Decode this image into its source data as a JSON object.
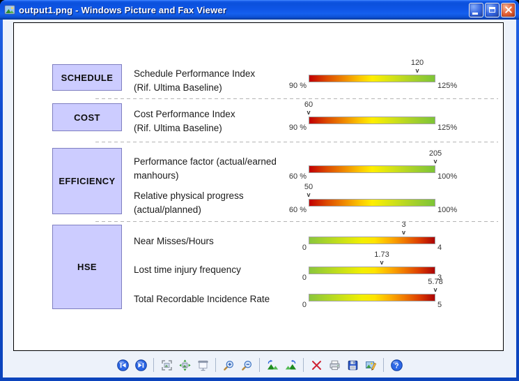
{
  "window": {
    "title": "output1.png - Windows Picture and Fax Viewer",
    "controls": {
      "minimize": "minimize",
      "maximize": "maximize",
      "close": "close"
    }
  },
  "kpi": {
    "marker_glyph": "v",
    "sections": [
      {
        "category": "SCHEDULE",
        "rows": [
          {
            "label_lines": [
              "Schedule Performance Index",
              "(Rif. Ultima Baseline)"
            ],
            "value_label": "120",
            "value": 120,
            "min": 90,
            "max": 125,
            "min_label": "90 %",
            "max_label": "125%",
            "gradient": "red-to-green"
          }
        ]
      },
      {
        "category": "COST",
        "rows": [
          {
            "label_lines": [
              "Cost Performance Index",
              "(Rif. Ultima Baseline)"
            ],
            "value_label": "60",
            "value": 60,
            "min": 90,
            "max": 125,
            "min_label": "90 %",
            "max_label": "125%",
            "gradient": "red-to-green"
          }
        ]
      },
      {
        "category": "EFFICIENCY",
        "rows": [
          {
            "label_lines": [
              "Performance factor (actual/earned",
              "manhours)"
            ],
            "value_label": "205",
            "value": 205,
            "min": 60,
            "max": 100,
            "min_label": "60 %",
            "max_label": "100%",
            "gradient": "red-to-green"
          },
          {
            "label_lines": [
              "Relative physical progress",
              "(actual/planned)"
            ],
            "value_label": "50",
            "value": 50,
            "min": 60,
            "max": 100,
            "min_label": "60 %",
            "max_label": "100%",
            "gradient": "red-to-green"
          }
        ]
      },
      {
        "category": "HSE",
        "rows": [
          {
            "label_lines": [
              "Near Misses/Hours"
            ],
            "value_label": "3",
            "value": 3,
            "min": 0,
            "max": 4,
            "min_label": "0",
            "max_label": "4",
            "gradient": "green-to-red"
          },
          {
            "label_lines": [
              "Lost time injury frequency"
            ],
            "value_label": "1.73",
            "value": 1.73,
            "min": 0,
            "max": 3,
            "min_label": "0",
            "max_label": "3",
            "gradient": "green-to-red"
          },
          {
            "label_lines": [
              "Total Recordable Incidence Rate"
            ],
            "value_label": "5.78",
            "value": 5.78,
            "min": 0,
            "max": 5,
            "min_label": "0",
            "max_label": "5",
            "gradient": "green-to-red"
          }
        ]
      }
    ]
  },
  "chart_data": {
    "type": "bar",
    "subtype": "kpi-gauge-bars",
    "gauges": [
      {
        "category": "SCHEDULE",
        "label": "Schedule Performance Index (Rif. Ultima Baseline)",
        "value": 120,
        "scale": [
          90,
          125
        ],
        "scale_labels": [
          "90 %",
          "125%"
        ],
        "gradient": "red-to-green"
      },
      {
        "category": "COST",
        "label": "Cost Performance Index (Rif. Ultima Baseline)",
        "value": 60,
        "scale": [
          90,
          125
        ],
        "scale_labels": [
          "90 %",
          "125%"
        ],
        "gradient": "red-to-green"
      },
      {
        "category": "EFFICIENCY",
        "label": "Performance factor (actual/earned manhours)",
        "value": 205,
        "scale": [
          60,
          100
        ],
        "scale_labels": [
          "60 %",
          "100%"
        ],
        "gradient": "red-to-green"
      },
      {
        "category": "EFFICIENCY",
        "label": "Relative physical progress (actual/planned)",
        "value": 50,
        "scale": [
          60,
          100
        ],
        "scale_labels": [
          "60 %",
          "100%"
        ],
        "gradient": "red-to-green"
      },
      {
        "category": "HSE",
        "label": "Near Misses/Hours",
        "value": 3,
        "scale": [
          0,
          4
        ],
        "scale_labels": [
          "0",
          "4"
        ],
        "gradient": "green-to-red"
      },
      {
        "category": "HSE",
        "label": "Lost time injury frequency",
        "value": 1.73,
        "scale": [
          0,
          3
        ],
        "scale_labels": [
          "0",
          "3"
        ],
        "gradient": "green-to-red"
      },
      {
        "category": "HSE",
        "label": "Total Recordable Incidence Rate",
        "value": 5.78,
        "scale": [
          0,
          5
        ],
        "scale_labels": [
          "0",
          "5"
        ],
        "gradient": "green-to-red"
      }
    ]
  },
  "toolbar": {
    "items": [
      {
        "type": "button",
        "name": "previous-image"
      },
      {
        "type": "button",
        "name": "next-image"
      },
      {
        "type": "separator"
      },
      {
        "type": "button",
        "name": "best-fit"
      },
      {
        "type": "button",
        "name": "actual-size"
      },
      {
        "type": "button",
        "name": "start-slideshow"
      },
      {
        "type": "separator"
      },
      {
        "type": "button",
        "name": "zoom-in"
      },
      {
        "type": "button",
        "name": "zoom-out"
      },
      {
        "type": "separator"
      },
      {
        "type": "button",
        "name": "rotate-clockwise"
      },
      {
        "type": "button",
        "name": "rotate-counterclockwise"
      },
      {
        "type": "separator"
      },
      {
        "type": "button",
        "name": "delete"
      },
      {
        "type": "button",
        "name": "print"
      },
      {
        "type": "button",
        "name": "save"
      },
      {
        "type": "button",
        "name": "edit"
      },
      {
        "type": "separator"
      },
      {
        "type": "button",
        "name": "help"
      }
    ]
  },
  "colors": {
    "titlebar_blue": "#0b50dc",
    "category_box": "#ccccff",
    "bar_red": "#c10000",
    "bar_green": "#7dc437",
    "client_background": "#edf2fa"
  }
}
